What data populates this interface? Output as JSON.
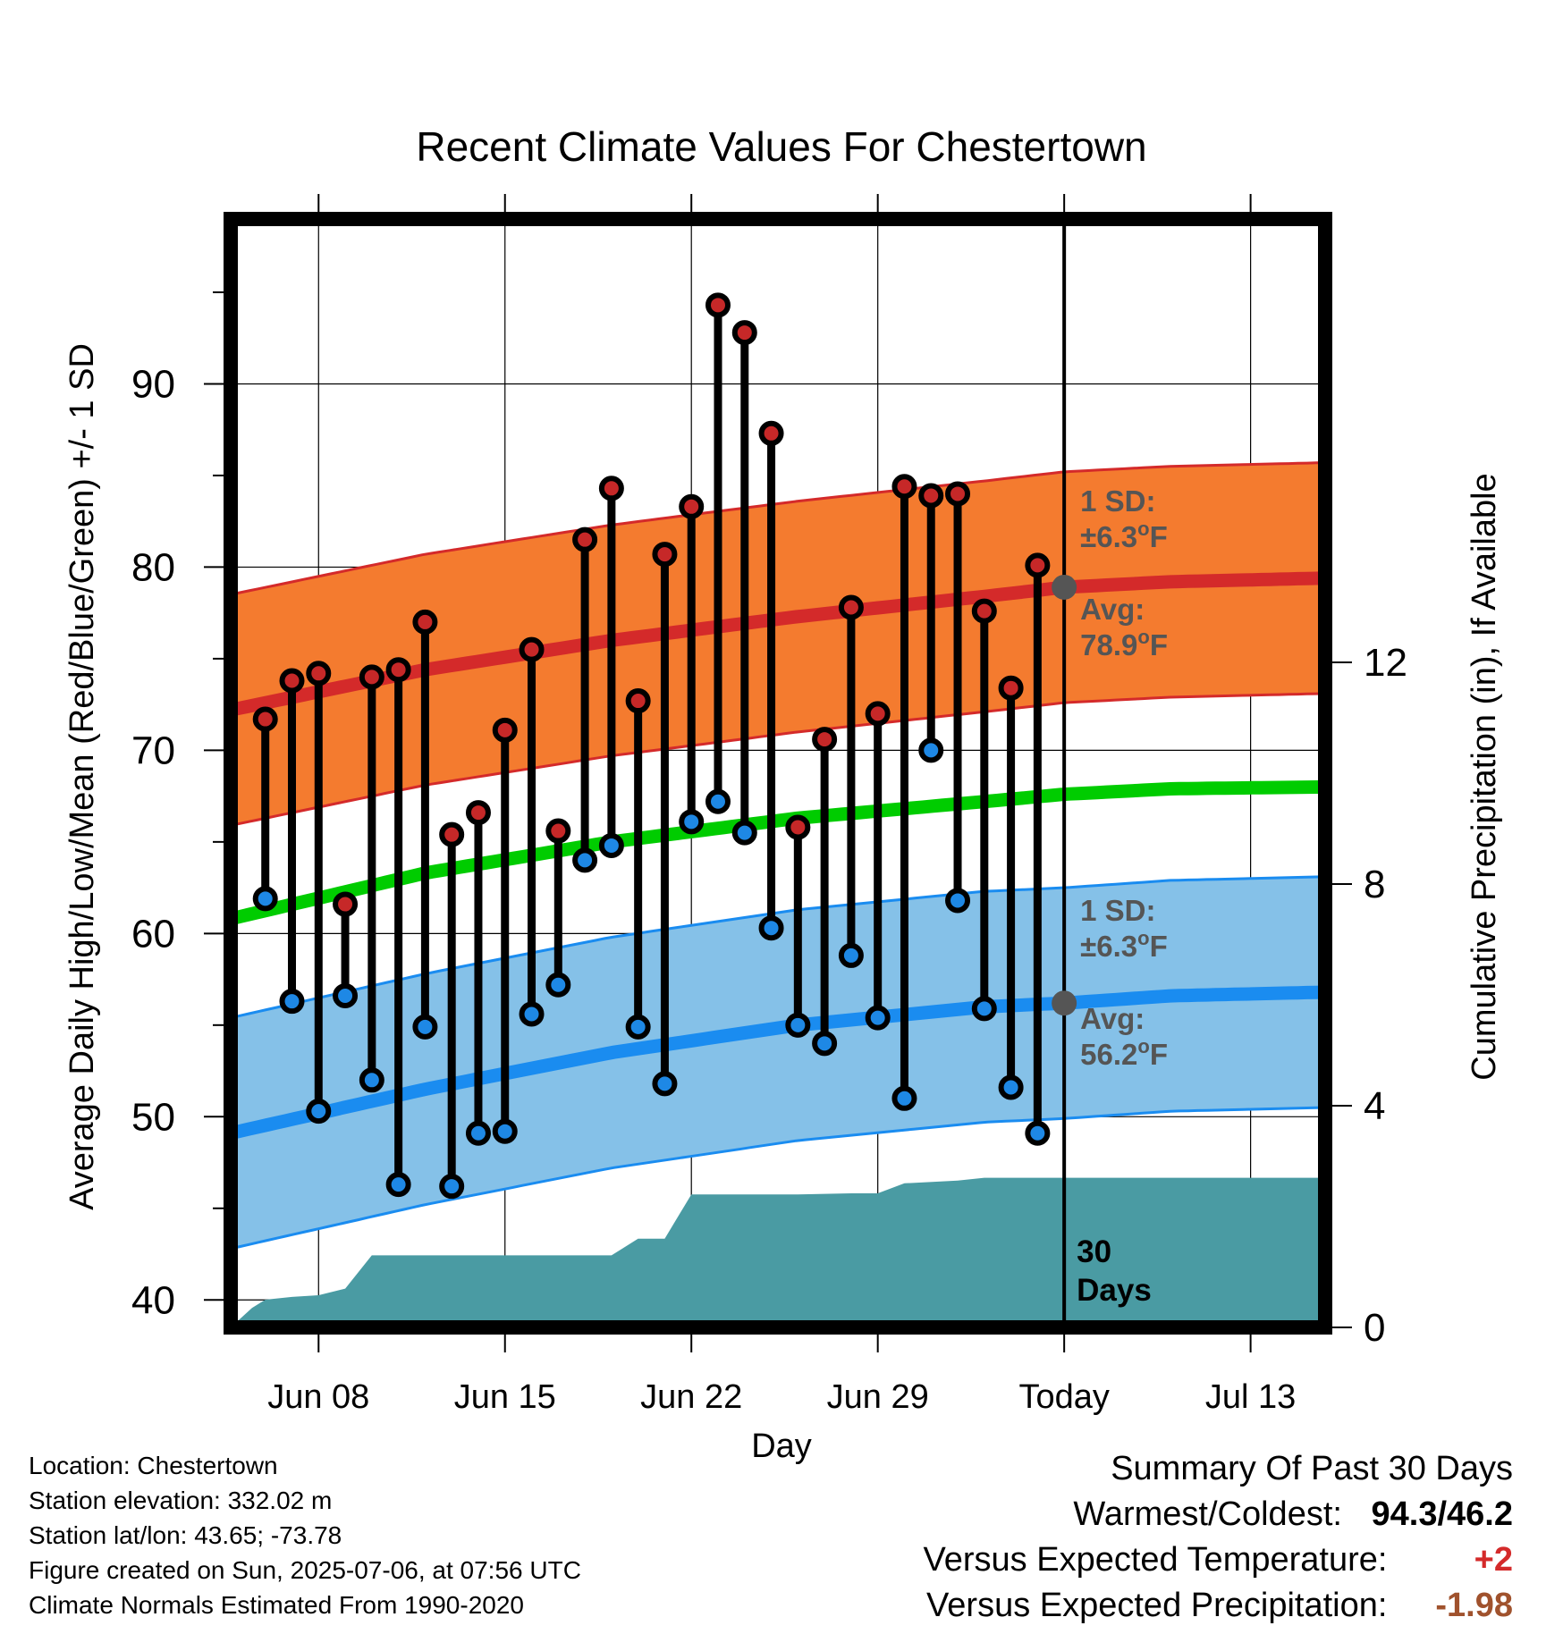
{
  "chart_data": {
    "type": "line",
    "title": "Recent Climate Values For Chestertown",
    "xlabel": "Day",
    "ylabel": "Average Daily High/Low/Mean (Red/Blue/Green) +/- 1 SD",
    "y2label": "Cumulative Precipitation (in), If Available",
    "ylim": [
      38.5,
      99
    ],
    "y2lim": [
      0,
      20
    ],
    "xlim": [
      -2.3,
      38.8
    ],
    "yticks": [
      "40",
      "50",
      "60",
      "70",
      "80",
      "90"
    ],
    "y2ticks": [
      "0",
      "4",
      "8",
      "12"
    ],
    "xticks": [
      {
        "label": "Jun 08",
        "day": 1
      },
      {
        "label": "Jun 15",
        "day": 8
      },
      {
        "label": "Jun 22",
        "day": 15
      },
      {
        "label": "Jun 29",
        "day": 22
      },
      {
        "label": "Today",
        "day": 29
      },
      {
        "label": "Jul 13",
        "day": 36
      }
    ],
    "today_day": 29,
    "grid": true,
    "normals": {
      "day": [
        -2.3,
        5,
        12,
        19,
        26,
        29,
        33,
        38.8
      ],
      "high_avg": [
        72.2,
        74.4,
        76.0,
        77.3,
        78.4,
        78.9,
        79.2,
        79.4
      ],
      "low_avg": [
        49.1,
        51.5,
        53.5,
        55.0,
        56.0,
        56.2,
        56.6,
        56.8
      ],
      "mean_avg": [
        60.8,
        63.3,
        65.0,
        66.3,
        67.2,
        67.6,
        67.9,
        68.0
      ],
      "sd": 6.3
    },
    "observed": {
      "day": [
        -1,
        0,
        1,
        2,
        3,
        4,
        5,
        6,
        7,
        8,
        9,
        10,
        11,
        12,
        13,
        14,
        15,
        16,
        17,
        18,
        19,
        20,
        21,
        22,
        23,
        24,
        25,
        26,
        27,
        28
      ],
      "high": [
        71.7,
        73.8,
        74.2,
        61.6,
        74.0,
        74.4,
        77.0,
        65.4,
        66.6,
        71.1,
        75.5,
        65.6,
        81.5,
        84.3,
        72.7,
        80.7,
        83.3,
        94.3,
        92.8,
        87.3,
        65.8,
        70.6,
        77.8,
        72.0,
        84.4,
        83.9,
        84.0,
        77.6,
        73.4,
        80.1
      ],
      "low": [
        61.9,
        56.3,
        50.3,
        56.6,
        52.0,
        46.3,
        54.9,
        46.2,
        49.1,
        49.2,
        55.6,
        57.2,
        64.0,
        64.8,
        54.9,
        51.8,
        66.1,
        67.2,
        65.5,
        60.3,
        55.0,
        54.0,
        58.8,
        55.4,
        51.0,
        70.0,
        61.8,
        55.9,
        51.6,
        49.1
      ]
    },
    "precip_cumulative": {
      "day": [
        -2.3,
        -1.5,
        -1,
        0,
        1,
        2,
        3,
        12,
        13,
        14,
        15,
        17,
        18,
        19,
        21,
        22,
        23,
        25,
        26,
        29,
        38.8
      ],
      "value": [
        0,
        0.35,
        0.5,
        0.55,
        0.58,
        0.7,
        1.3,
        1.3,
        1.6,
        1.6,
        2.4,
        2.4,
        2.4,
        2.4,
        2.42,
        2.42,
        2.6,
        2.65,
        2.7,
        2.7,
        2.7
      ]
    },
    "annotations": {
      "high_sd_line1": "1 SD:",
      "high_sd_line2": "±6.3",
      "high_avg_line1": "Avg:",
      "high_avg_line2": "78.9",
      "low_sd_line1": "1 SD:",
      "low_sd_line2": "±6.3",
      "low_avg_line1": "Avg:",
      "low_avg_line2": "56.2",
      "degree_symbol": "o",
      "unit": "F",
      "window_line1": "30",
      "window_line2": "Days"
    },
    "colors": {
      "high_band": "#f47b2f",
      "high_line": "#d42a2a",
      "low_band": "#85c1e8",
      "low_line": "#1a8cf0",
      "mean_line": "#00cc00",
      "precip": "#4a9ba3",
      "high_dot": "#c62828",
      "low_dot": "#1e88e5",
      "avg_marker": "#555555"
    }
  },
  "station": {
    "location": "Location: Chestertown",
    "elevation": "Station elevation: 332.02 m",
    "latlon": "Station lat/lon: 43.65; -73.78",
    "created": "Figure created on Sun, 2025-07-06, at 07:56 UTC",
    "normals": "Climate Normals Estimated From 1990-2020"
  },
  "summary": {
    "title": "Summary Of Past 30 Days",
    "warmest_coldest_label": "Warmest/Coldest:",
    "warmest_coldest_value": "94.3/46.2",
    "temp_label": "Versus Expected Temperature:",
    "temp_value": "+2",
    "temp_color": "#d42a2a",
    "precip_label": "Versus Expected Precipitation:",
    "precip_value": "-1.98",
    "precip_color": "#a0522d"
  }
}
